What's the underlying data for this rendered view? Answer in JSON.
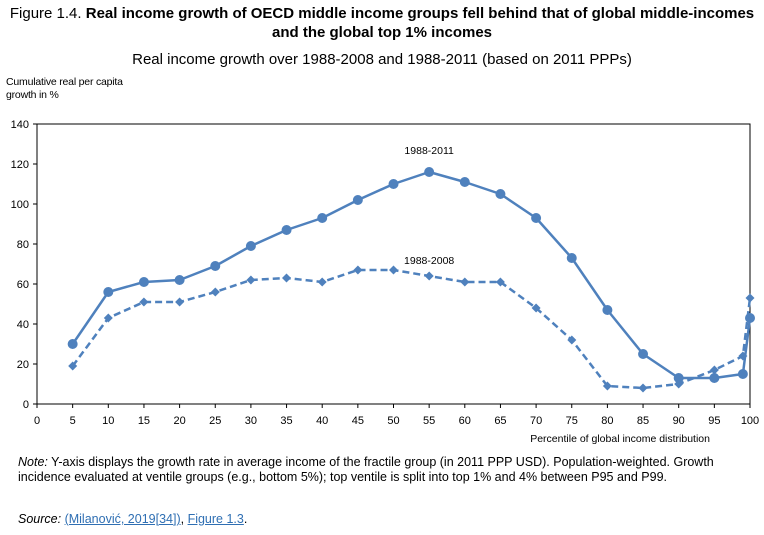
{
  "figure": {
    "number": "Figure 1.4.",
    "title": "Real income growth of OECD middle income groups fell behind that of global middle-incomes and the global top 1% incomes",
    "subtitle": "Real income growth over 1988-2008 and 1988-2011 (based on 2011 PPPs)"
  },
  "chart_data": {
    "type": "line",
    "ylabel_line1": "Cumulative real per capita",
    "ylabel_line2": "growth in %",
    "xlabel": "Percentile of global income distribution",
    "ylim": [
      0,
      140
    ],
    "yticks": [
      0,
      20,
      40,
      60,
      80,
      100,
      120,
      140
    ],
    "xlim": [
      0,
      100
    ],
    "xticks": [
      0,
      5,
      10,
      15,
      20,
      25,
      30,
      35,
      40,
      45,
      50,
      55,
      60,
      65,
      70,
      75,
      80,
      85,
      90,
      95,
      100
    ],
    "grid": false,
    "color": "#4f81bd",
    "series": [
      {
        "name": "1988-2011",
        "style": "solid",
        "marker": "circle",
        "x": [
          5,
          10,
          15,
          20,
          25,
          30,
          35,
          40,
          45,
          50,
          55,
          60,
          65,
          70,
          75,
          80,
          85,
          90,
          95,
          99,
          100
        ],
        "values": [
          30,
          56,
          61,
          62,
          69,
          79,
          87,
          93,
          102,
          110,
          116,
          111,
          105,
          93,
          73,
          47,
          25,
          13,
          13,
          15,
          43
        ]
      },
      {
        "name": "1988-2008",
        "style": "dashed",
        "marker": "diamond",
        "x": [
          5,
          10,
          15,
          20,
          25,
          30,
          35,
          40,
          45,
          50,
          55,
          60,
          65,
          70,
          75,
          80,
          85,
          90,
          95,
          99,
          100
        ],
        "values": [
          19,
          43,
          51,
          51,
          56,
          62,
          63,
          61,
          67,
          67,
          64,
          61,
          61,
          48,
          32,
          9,
          8,
          10,
          17,
          24,
          53
        ]
      }
    ]
  },
  "notes": {
    "note_label": "Note:",
    "note_text": " Y-axis displays the growth rate in average income of the fractile group (in 2011 PPP USD). Population-weighted. Growth incidence evaluated at ventile groups (e.g., bottom 5%); top ventile is split into top 1% and 4% between P95 and P99.",
    "source_label": "Source:",
    "source_ref": "(Milanović, 2019[34])",
    "source_sep": ", ",
    "source_fig": "Figure 1.3",
    "source_end": "."
  }
}
